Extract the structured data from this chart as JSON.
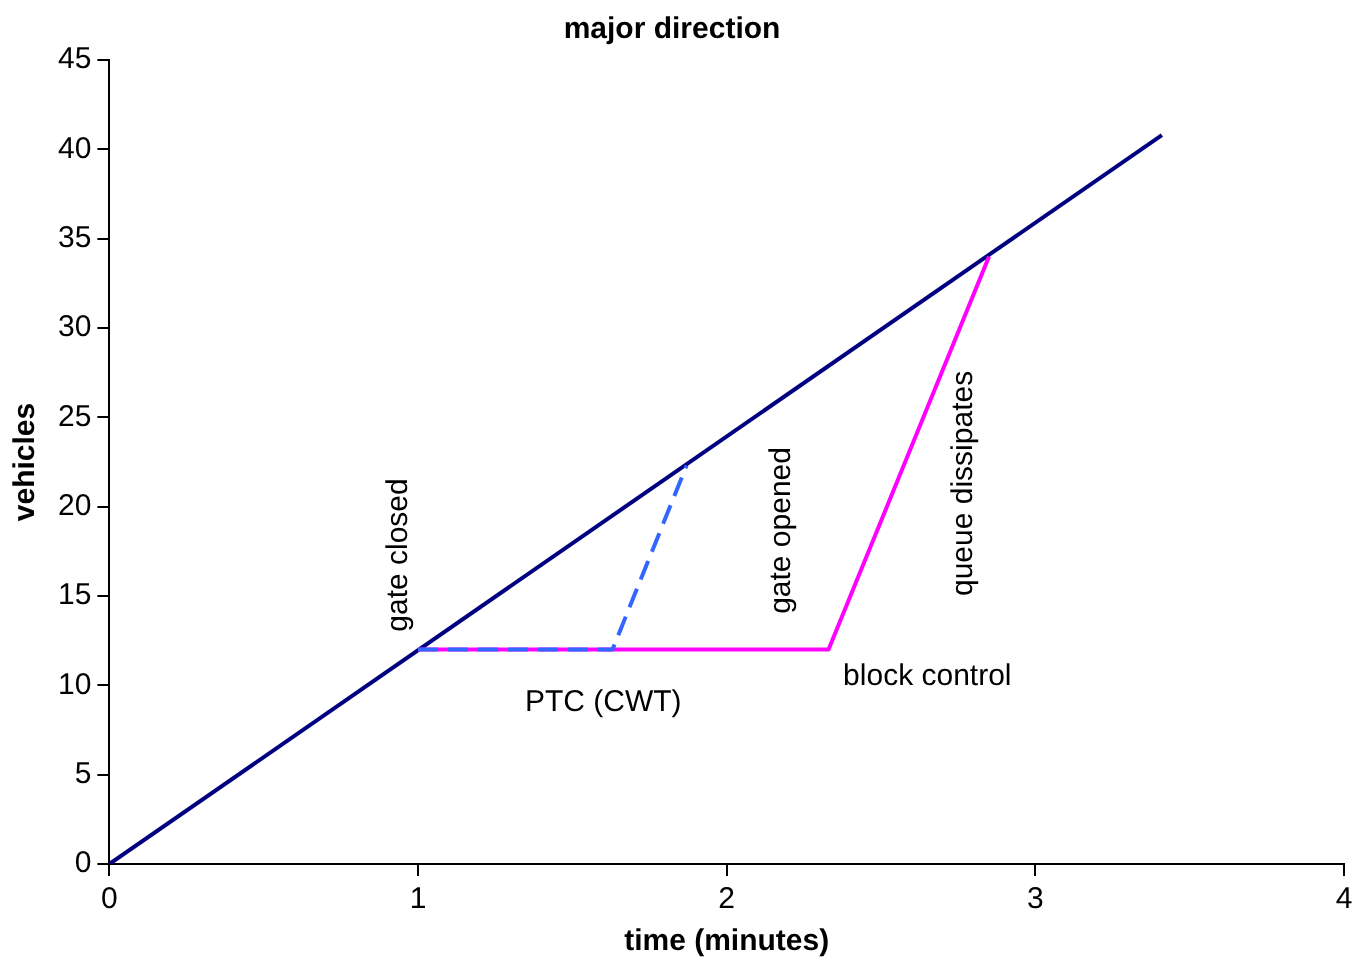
{
  "chart_data": {
    "type": "line",
    "title": "major direction",
    "xlabel": "time (minutes)",
    "ylabel": "vehicles",
    "xlim": [
      0,
      4
    ],
    "xticks": [
      0,
      1,
      2,
      3,
      4
    ],
    "ylim": [
      0,
      45
    ],
    "yticks": [
      0,
      5,
      10,
      15,
      20,
      25,
      30,
      35,
      40,
      45
    ],
    "grid": false,
    "legend": false,
    "marker": "none",
    "line_style": "solid",
    "series": [
      {
        "color": "#000080",
        "x": [
          0,
          3.41
        ],
        "values": [
          0,
          40.8
        ]
      },
      {
        "color": "#ff00ff",
        "x": [
          1,
          2.33,
          2.85
        ],
        "values": [
          12,
          12,
          34
        ]
      },
      {
        "color": "#3366ff",
        "x": [
          1,
          1.63,
          1.87
        ],
        "values": [
          12,
          12,
          22.3
        ],
        "line_style": "dashed"
      }
    ],
    "annotations": [
      "gate closed",
      "gate opened",
      "queue dissipates",
      "PTC (CWT)",
      "block control"
    ]
  }
}
